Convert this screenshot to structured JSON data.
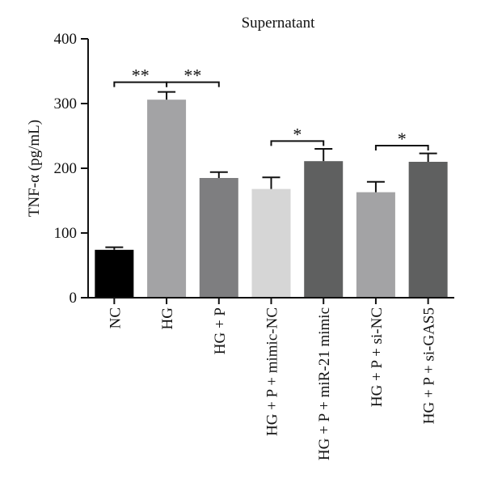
{
  "chart_data": {
    "type": "bar",
    "title": "Supernatant",
    "ylabel": "TNF-α (pg/mL)",
    "xlabel": "",
    "ylim": [
      0,
      400
    ],
    "yticks": [
      0,
      100,
      200,
      300,
      400
    ],
    "categories": [
      "NC",
      "HG",
      "HG + P",
      "HG + P + mimic-NC",
      "HG + P + miR-21 mimic",
      "HG + P + si-NC",
      "HG + P + si-GAS5"
    ],
    "values": [
      74,
      306,
      185,
      168,
      211,
      163,
      210
    ],
    "errors": [
      4,
      12,
      9,
      18,
      19,
      16,
      13
    ],
    "colors": [
      "#000000",
      "#a3a3a5",
      "#7e7e80",
      "#d6d6d6",
      "#5f6060",
      "#a3a3a5",
      "#5f6060"
    ],
    "significance": [
      {
        "from": 0,
        "to": 1,
        "label": "**",
        "y": 333
      },
      {
        "from": 1,
        "to": 2,
        "label": "**",
        "y": 333
      },
      {
        "from": 3,
        "to": 4,
        "label": "*",
        "y": 242
      },
      {
        "from": 5,
        "to": 6,
        "label": "*",
        "y": 235
      }
    ]
  }
}
